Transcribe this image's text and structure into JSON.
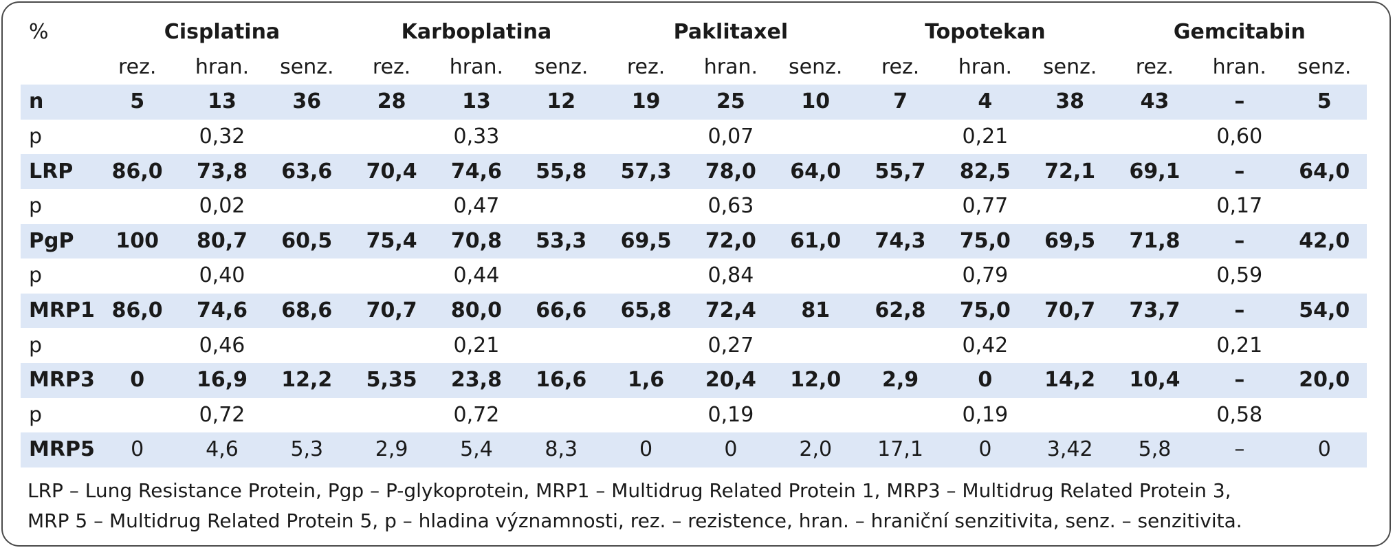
{
  "table": {
    "corner_label": "%",
    "groups": [
      "Cisplatina",
      "Karboplatina",
      "Paklitaxel",
      "Topotekan",
      "Gemcitabin"
    ],
    "subheaders": [
      "rez.",
      "hran.",
      "senz."
    ],
    "rows": [
      {
        "label": "n",
        "shaded": true,
        "bold": true,
        "cells": [
          "5",
          "13",
          "36",
          "28",
          "13",
          "12",
          "19",
          "25",
          "10",
          "7",
          "4",
          "38",
          "43",
          "–",
          "5"
        ]
      },
      {
        "label": "p",
        "shaded": false,
        "bold": false,
        "cells": [
          "",
          "0,32",
          "",
          "",
          "0,33",
          "",
          "",
          "0,07",
          "",
          "",
          "0,21",
          "",
          "",
          "0,60",
          ""
        ]
      },
      {
        "label": "LRP",
        "shaded": true,
        "bold": true,
        "cells": [
          "86,0",
          "73,8",
          "63,6",
          "70,4",
          "74,6",
          "55,8",
          "57,3",
          "78,0",
          "64,0",
          "55,7",
          "82,5",
          "72,1",
          "69,1",
          "–",
          "64,0"
        ]
      },
      {
        "label": "p",
        "shaded": false,
        "bold": false,
        "cells": [
          "",
          "0,02",
          "",
          "",
          "0,47",
          "",
          "",
          "0,63",
          "",
          "",
          "0,77",
          "",
          "",
          "0,17",
          ""
        ]
      },
      {
        "label": "PgP",
        "shaded": true,
        "bold": true,
        "cells": [
          "100",
          "80,7",
          "60,5",
          "75,4",
          "70,8",
          "53,3",
          "69,5",
          "72,0",
          "61,0",
          "74,3",
          "75,0",
          "69,5",
          "71,8",
          "–",
          "42,0"
        ]
      },
      {
        "label": "p",
        "shaded": false,
        "bold": false,
        "cells": [
          "",
          "0,40",
          "",
          "",
          "0,44",
          "",
          "",
          "0,84",
          "",
          "",
          "0,79",
          "",
          "",
          "0,59",
          ""
        ]
      },
      {
        "label": "MRP1",
        "shaded": true,
        "bold": true,
        "cells": [
          "86,0",
          "74,6",
          "68,6",
          "70,7",
          "80,0",
          "66,6",
          "65,8",
          "72,4",
          "81",
          "62,8",
          "75,0",
          "70,7",
          "73,7",
          "–",
          "54,0"
        ]
      },
      {
        "label": "p",
        "shaded": false,
        "bold": false,
        "cells": [
          "",
          "0,46",
          "",
          "",
          "0,21",
          "",
          "",
          "0,27",
          "",
          "",
          "0,42",
          "",
          "",
          "0,21",
          ""
        ]
      },
      {
        "label": "MRP3",
        "shaded": true,
        "bold": true,
        "cells": [
          "0",
          "16,9",
          "12,2",
          "5,35",
          "23,8",
          "16,6",
          "1,6",
          "20,4",
          "12,0",
          "2,9",
          "0",
          "14,2",
          "10,4",
          "–",
          "20,0"
        ]
      },
      {
        "label": "p",
        "shaded": false,
        "bold": false,
        "cells": [
          "",
          "0,72",
          "",
          "",
          "0,72",
          "",
          "",
          "0,19",
          "",
          "",
          "0,19",
          "",
          "",
          "0,58",
          ""
        ]
      },
      {
        "label": "MRP5",
        "shaded": true,
        "bold": false,
        "label_bold": true,
        "cells": [
          "0",
          "4,6",
          "5,3",
          "2,9",
          "5,4",
          "8,3",
          "0",
          "0",
          "2,0",
          "17,1",
          "0",
          "3,42",
          "5,8",
          "–",
          "0"
        ]
      }
    ]
  },
  "footnote": {
    "line1": "LRP – Lung Resistance Protein, Pgp – P-glykoprotein, MRP1 – Multidrug Related Protein 1, MRP3 – Multidrug Related Protein 3,",
    "line2": "MRP 5 – Multidrug Related Protein 5, p – hladina významnosti, rez. – rezistence, hran. – hraniční senzitivita, senz. – senzitivita."
  }
}
